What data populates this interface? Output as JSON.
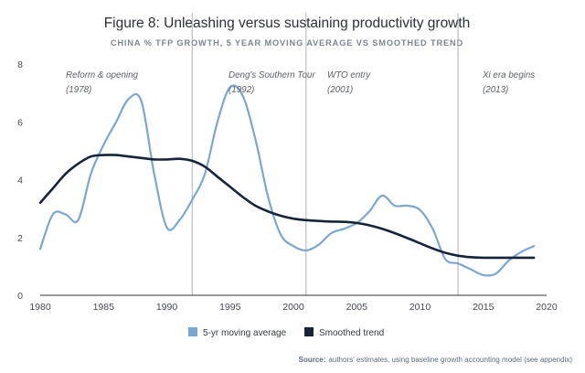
{
  "chart_data": {
    "type": "line",
    "title": "Figure 8: Unleashing versus sustaining productivity growth",
    "subtitle": "CHINA % TFP GROWTH, 5 YEAR MOVING AVERAGE VS SMOOTHED TREND",
    "xlabel": "",
    "ylabel": "",
    "xlim": [
      1980,
      2020
    ],
    "ylim": [
      0,
      8
    ],
    "x_ticks": [
      1980,
      1985,
      1990,
      1995,
      2000,
      2005,
      2010,
      2015,
      2020
    ],
    "y_ticks": [
      0,
      2,
      4,
      6,
      8
    ],
    "grid": false,
    "legend_position": "bottom-left",
    "series": [
      {
        "name": "5-yr moving average",
        "color": "#7ba7cf",
        "x": [
          1980,
          1981,
          1982,
          1983,
          1984,
          1985,
          1986,
          1987,
          1988,
          1989,
          1990,
          1991,
          1992,
          1993,
          1994,
          1995,
          1996,
          1997,
          1998,
          1999,
          2000,
          2001,
          2002,
          2003,
          2004,
          2005,
          2006,
          2007,
          2008,
          2009,
          2010,
          2011,
          2012,
          2013,
          2014,
          2015,
          2016,
          2017,
          2018,
          2019
        ],
        "values": [
          1.6,
          2.8,
          2.8,
          2.6,
          4.2,
          5.2,
          6.0,
          6.8,
          6.7,
          4.2,
          2.35,
          2.6,
          3.3,
          4.2,
          6.0,
          7.2,
          6.9,
          5.4,
          3.4,
          2.1,
          1.7,
          1.55,
          1.75,
          2.15,
          2.3,
          2.5,
          2.9,
          3.45,
          3.1,
          3.1,
          2.95,
          2.3,
          1.25,
          1.1,
          0.9,
          0.7,
          0.75,
          1.2,
          1.5,
          1.7
        ]
      },
      {
        "name": "Smoothed trend",
        "color": "#16243a",
        "x": [
          1980,
          1981,
          1982,
          1983,
          1984,
          1985,
          1986,
          1987,
          1988,
          1989,
          1990,
          1991,
          1992,
          1993,
          1994,
          1995,
          1996,
          1997,
          1998,
          1999,
          2000,
          2001,
          2002,
          2003,
          2004,
          2005,
          2006,
          2007,
          2008,
          2009,
          2010,
          2011,
          2012,
          2013,
          2014,
          2015,
          2016,
          2017,
          2018,
          2019
        ],
        "values": [
          3.2,
          3.7,
          4.2,
          4.55,
          4.8,
          4.85,
          4.85,
          4.8,
          4.75,
          4.7,
          4.7,
          4.72,
          4.65,
          4.45,
          4.1,
          3.75,
          3.4,
          3.1,
          2.9,
          2.75,
          2.65,
          2.6,
          2.57,
          2.55,
          2.54,
          2.5,
          2.42,
          2.3,
          2.15,
          1.98,
          1.8,
          1.62,
          1.47,
          1.37,
          1.32,
          1.3,
          1.3,
          1.3,
          1.3,
          1.3
        ]
      }
    ],
    "events": [
      {
        "x": 1992,
        "label": "Deng's Southern Tour",
        "year_label": "(1992)"
      },
      {
        "x": 2001,
        "label": "WTO entry",
        "year_label": "(2001)"
      },
      {
        "x": 2013,
        "label": "Xi era begins",
        "year_label": "(2013)"
      }
    ],
    "annotations": [
      {
        "x": 1982,
        "label": "Reform & opening",
        "year_label": "(1978)"
      }
    ],
    "source_label": "Source:",
    "source_text": "authors' estimates, using baseline growth accounting model (see appendix)"
  }
}
